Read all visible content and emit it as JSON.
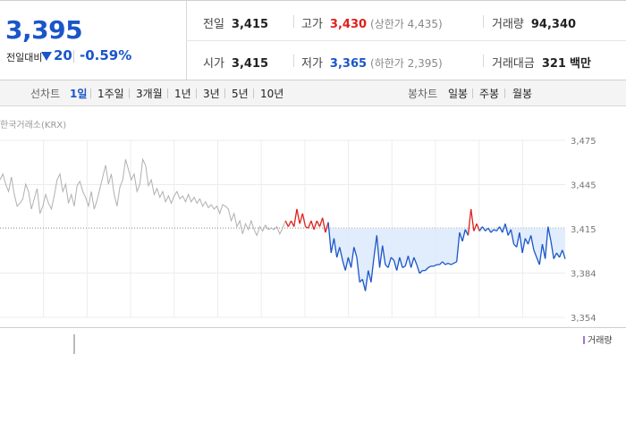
{
  "summary": {
    "current_price": "3,395",
    "change_label": "전일대비",
    "change_value": "20",
    "change_direction": "down",
    "change_pct": "-0.59%"
  },
  "stats": {
    "prev_close_label": "전일",
    "prev_close": "3,415",
    "high_label": "고가",
    "high": "3,430",
    "upper_limit": "(상한가 4,435)",
    "volume_label": "거래량",
    "volume": "94,340",
    "open_label": "시가",
    "open": "3,415",
    "low_label": "저가",
    "low": "3,365",
    "lower_limit": "(하한가 2,395)",
    "trade_value_label": "거래대금",
    "trade_value": "321",
    "trade_value_unit": "백만"
  },
  "toolbar": {
    "line_chart_label": "선차트",
    "line_periods": [
      "1일",
      "1주일",
      "3개월",
      "1년",
      "3년",
      "5년",
      "10년"
    ],
    "active_line_period": "1일",
    "candle_chart_label": "봉차트",
    "candle_periods": [
      "일봉",
      "주봉",
      "월봉"
    ]
  },
  "chart": {
    "source_label": "한국거래소(KRX)",
    "y_ticks": [
      "3,475",
      "3,445",
      "3,415",
      "3,384",
      "3,354"
    ],
    "volume_legend": "거래량"
  },
  "colors": {
    "up": "#e0201c",
    "down": "#1a56c9",
    "pre_market": "#b0b0b0",
    "fill_below_ref": "#dce9fb",
    "volume": "#9b7bd1"
  },
  "chart_data": {
    "type": "line",
    "title": "",
    "ylim": [
      3354,
      3475
    ],
    "reference_price": 3415,
    "series": [
      {
        "values": [
          3448,
          3452,
          3445,
          3440,
          3450,
          3438,
          3430,
          3432,
          3435,
          3445,
          3440,
          3428,
          3435,
          3442,
          3425,
          3430,
          3438,
          3432,
          3428,
          3437,
          3448,
          3452,
          3440,
          3445,
          3432,
          3438,
          3430,
          3444,
          3447,
          3440,
          3436,
          3430,
          3440,
          3428,
          3434,
          3442,
          3450,
          3458,
          3445,
          3452,
          3438,
          3430,
          3443,
          3448,
          3462,
          3455,
          3448,
          3452,
          3440,
          3445,
          3462,
          3458,
          3444,
          3448,
          3438,
          3442,
          3436,
          3440,
          3433,
          3437,
          3432,
          3437,
          3440,
          3435,
          3437,
          3433,
          3438,
          3433,
          3436,
          3432,
          3435,
          3430,
          3433,
          3429,
          3431,
          3428,
          3430,
          3425,
          3431,
          3430,
          3428,
          3420,
          3425,
          3416,
          3420,
          3411,
          3418,
          3414,
          3420,
          3414,
          3410,
          3416,
          3413,
          3417,
          3414,
          3415,
          3414,
          3416,
          3411,
          3415,
          3420,
          3416,
          3420,
          3416,
          3428,
          3418,
          3425,
          3416,
          3415,
          3420,
          3414,
          3420,
          3416,
          3422,
          3412,
          3419,
          3398,
          3408,
          3395,
          3402,
          3393,
          3386,
          3395,
          3388,
          3402,
          3395,
          3378,
          3380,
          3372,
          3386,
          3378,
          3395,
          3410,
          3388,
          3403,
          3390,
          3388,
          3395,
          3393,
          3386,
          3395,
          3388,
          3389,
          3396,
          3388,
          3395,
          3390,
          3384,
          3386,
          3386,
          3388,
          3389,
          3389,
          3390,
          3390,
          3392,
          3390,
          3391,
          3390,
          3391,
          3392,
          3412,
          3406,
          3414,
          3410,
          3428,
          3413,
          3418,
          3413,
          3416,
          3413,
          3415,
          3412,
          3414,
          3413,
          3416,
          3412,
          3418,
          3410,
          3414,
          3404,
          3402,
          3412,
          3398,
          3408,
          3404,
          3410,
          3400,
          3395,
          3390,
          3404,
          3394,
          3416,
          3406,
          3394,
          3398,
          3395,
          3400,
          3394
        ]
      }
    ]
  }
}
